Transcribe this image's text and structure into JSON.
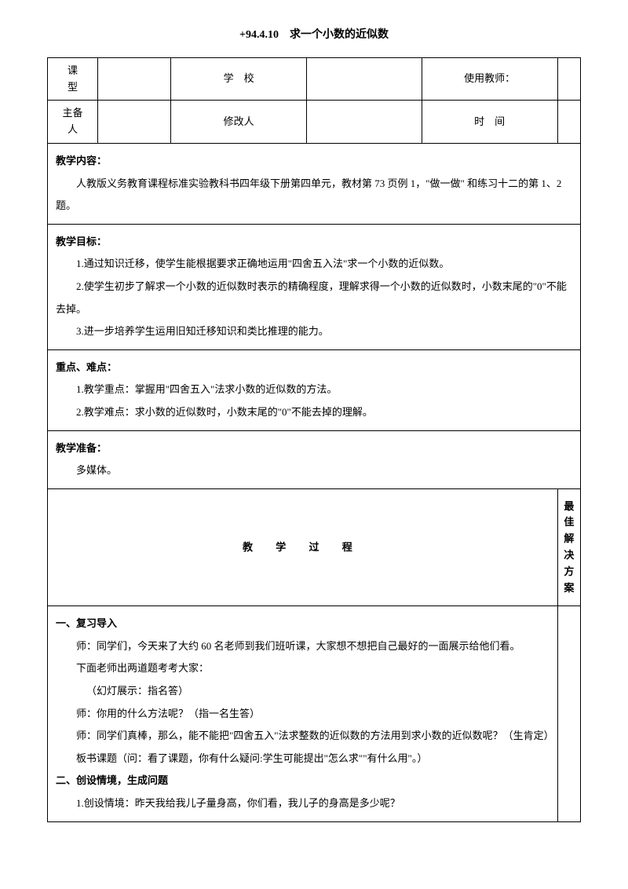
{
  "title": "+94.4.10　求一个小数的近似数",
  "header": {
    "r1c1": "课\n型",
    "r1c3": "学　校",
    "r1c5": "使用教师：",
    "r2c1": "主备\n人",
    "r2c3": "修改人",
    "r2c5": "时　间"
  },
  "content": {
    "teachingContent": {
      "label": "教学内容：",
      "body": "人教版义务教育课程标准实验教科书四年级下册第四单元，教材第 73 页例 1，\"做一做\" 和练习十二的第 1、2 题。"
    },
    "goals": {
      "label": "教学目标：",
      "g1": "1.通过知识迁移，使学生能根据要求正确地运用\"四舍五入法\"求一个小数的近似数。",
      "g2": "2.使学生初步了解求一个小数的近似数时表示的精确程度，理解求得一个小数的近似数时，小数末尾的\"0\"不能去掉。",
      "g3": "3.进一步培养学生运用旧知迁移知识和类比推理的能力。"
    },
    "keypoints": {
      "label": "重点、难点：",
      "p1": "1.教学重点：掌握用\"四舍五入\"法求小数的近似数的方法。",
      "p2": "2.教学难点：求小数的近似数时，小数末尾的\"0\"不能去掉的理解。"
    },
    "prep": {
      "label": "教学准备：",
      "body": "多媒体。"
    },
    "process": {
      "title": "教 学 过 程",
      "rightCol": "最佳解决方案"
    },
    "body": {
      "s1": "一、复习导入",
      "l1": "师：同学们，今天来了大约 60 名老师到我们班听课，大家想不想把自己最好的一面展示给他们看。",
      "l2": "下面老师出两道题考考大家：",
      "l3": "（幻灯展示：指名答）",
      "l4": "师：你用的什么方法呢？（指一名生答）",
      "l5": "师：同学们真棒，那么，能不能把\"四舍五入\"法求整数的近似数的方法用到求小数的近似数呢？（生肯定）",
      "l6": "板书课题（问：看了课题，你有什么疑问:学生可能提出\"怎么求\"\"有什么用\"。）",
      "s2": "二、创设情境，生成问题",
      "l7": "1.创设情境：昨天我给我儿子量身高，你们看，我儿子的身高是多少呢？"
    }
  }
}
